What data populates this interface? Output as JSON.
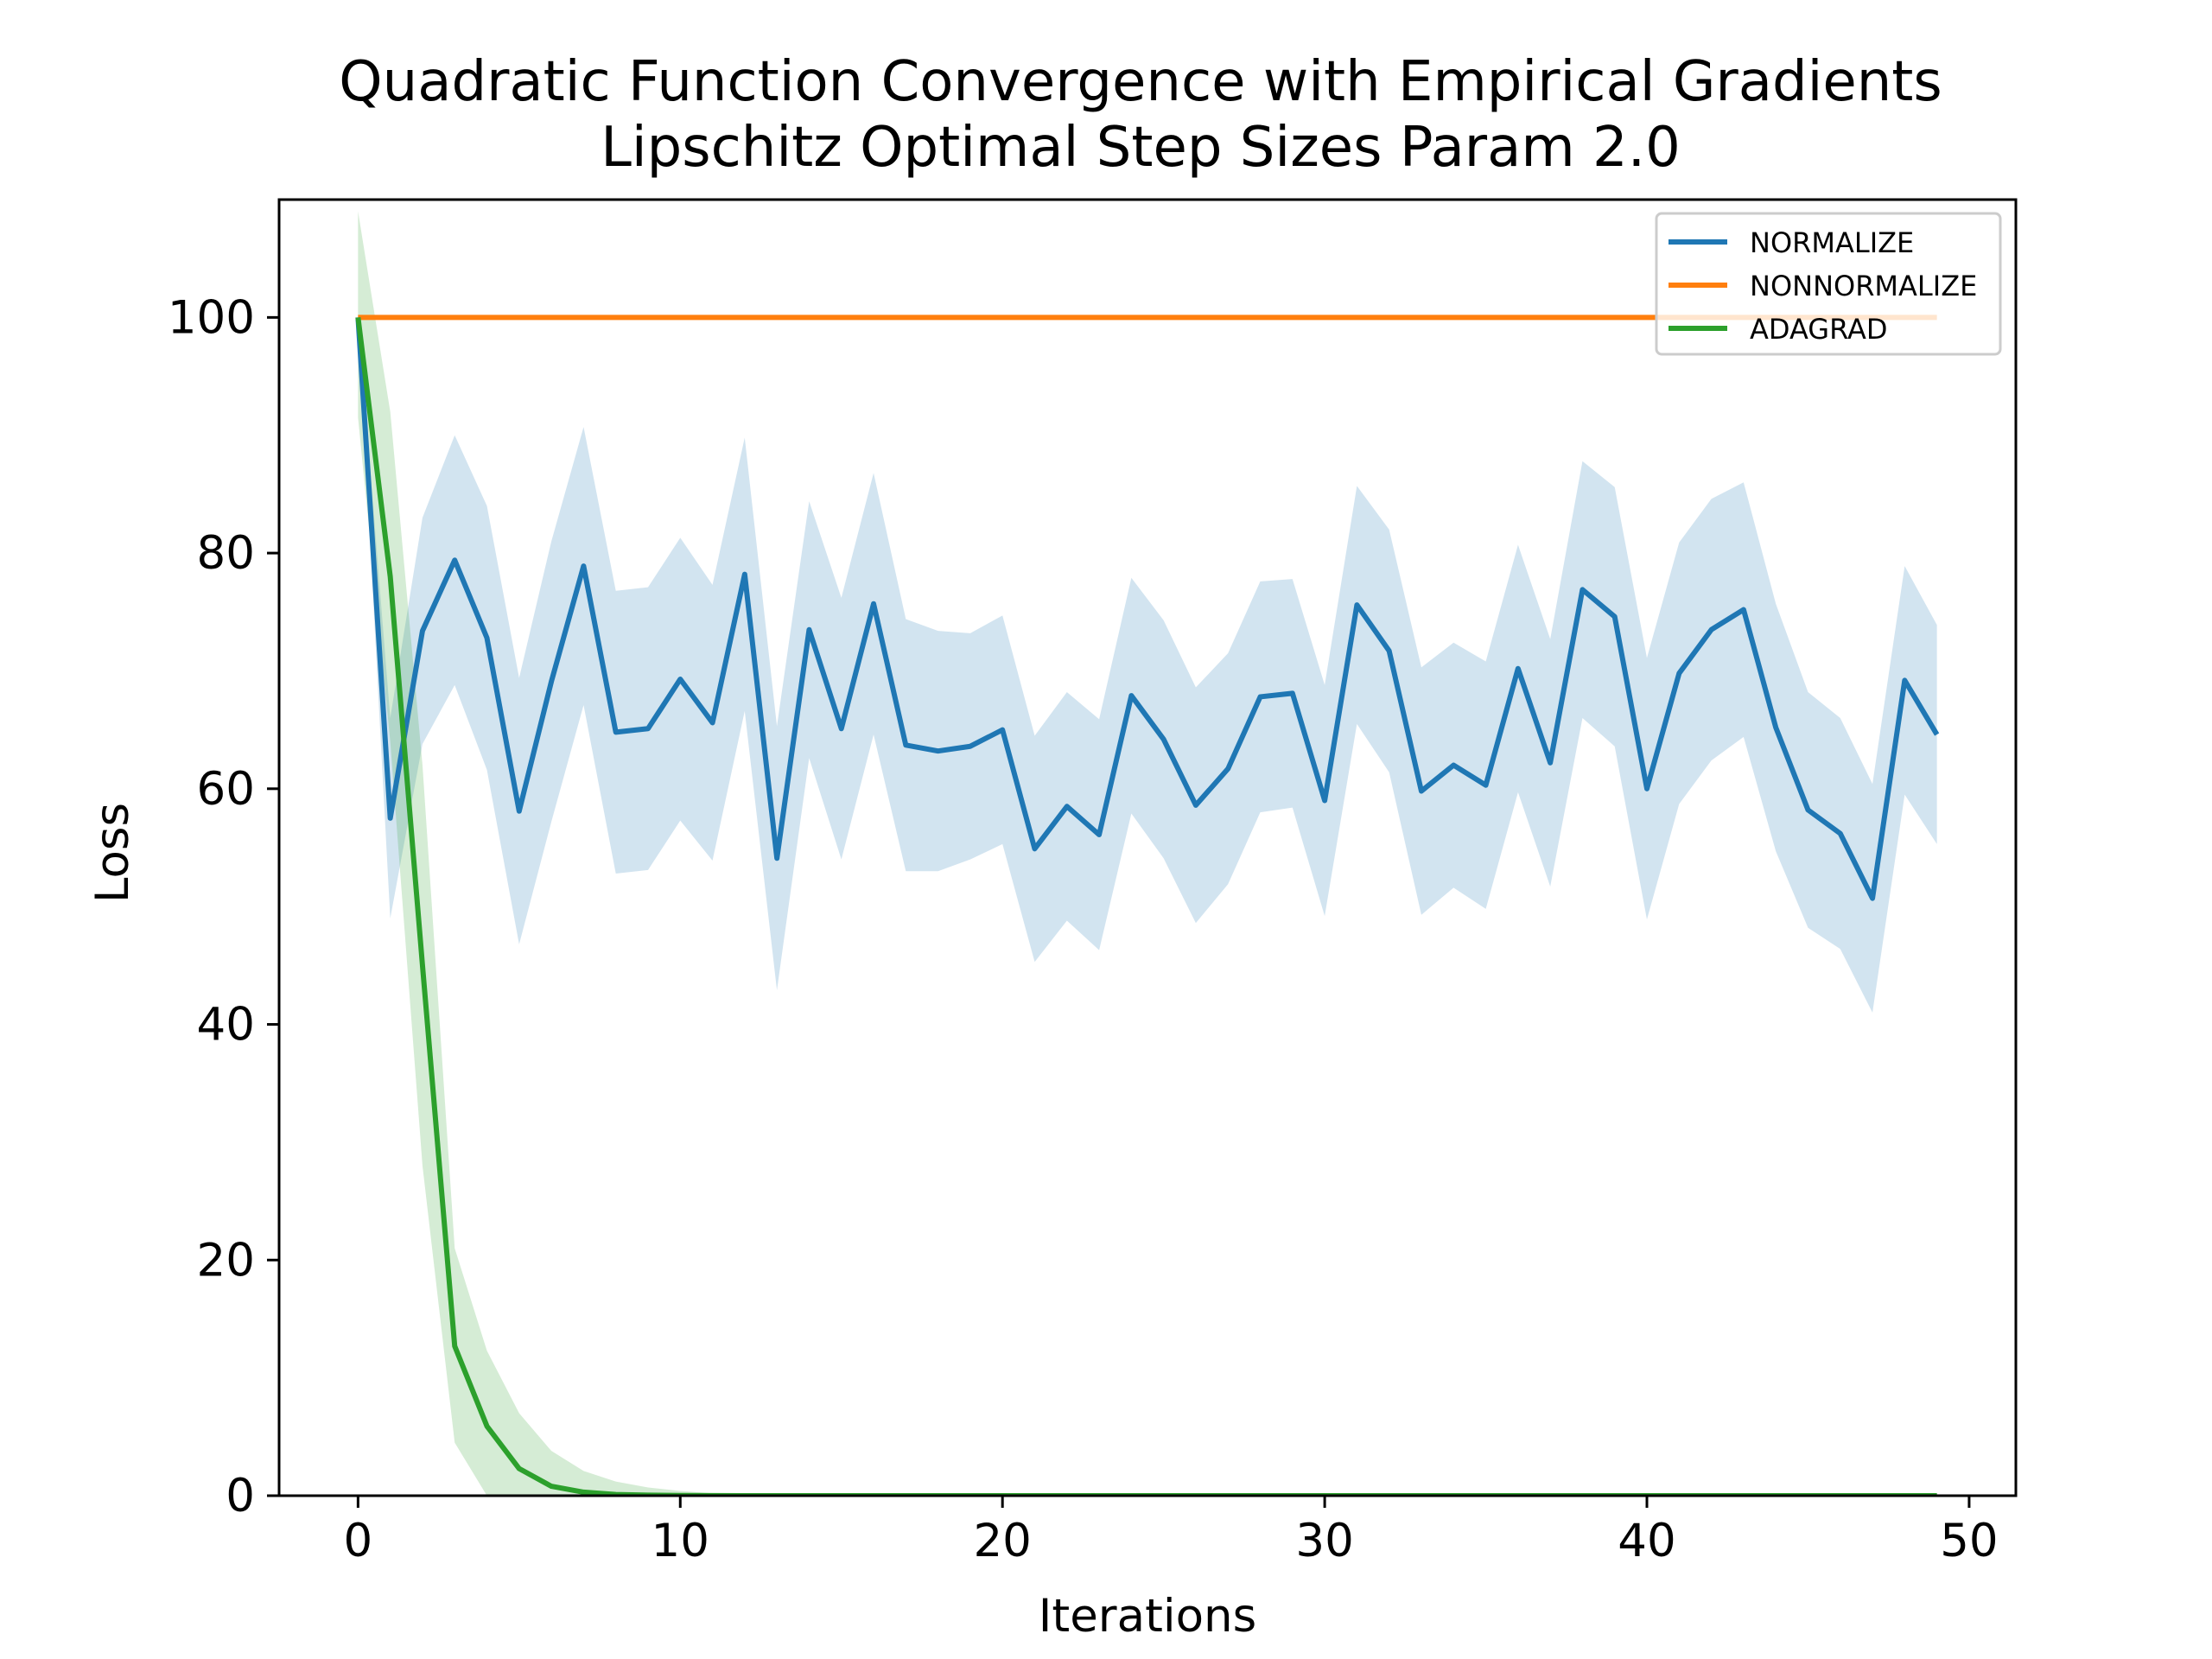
{
  "chart_data": {
    "type": "line",
    "title": "Quadratic Function Convergence with Empirical Gradients",
    "subtitle": "Lipschitz Optimal Step Sizes Param 2.0",
    "xlabel": "Iterations",
    "ylabel": "Loss",
    "xlim": [
      -2.45,
      51.45
    ],
    "ylim": [
      0,
      110
    ],
    "xticks": [
      0,
      10,
      20,
      30,
      40,
      50
    ],
    "yticks": [
      0,
      20,
      40,
      60,
      80,
      100
    ],
    "legend_position": "top-right",
    "grid": false,
    "x": [
      0,
      1,
      2,
      3,
      4,
      5,
      6,
      7,
      8,
      9,
      10,
      11,
      12,
      13,
      14,
      15,
      16,
      17,
      18,
      19,
      20,
      21,
      22,
      23,
      24,
      25,
      26,
      27,
      28,
      29,
      30,
      31,
      32,
      33,
      34,
      35,
      36,
      37,
      38,
      39,
      40,
      41,
      42,
      43,
      44,
      45,
      46,
      47,
      48,
      49
    ],
    "series": [
      {
        "name": "NORMALIZE",
        "color": "#1f77b4",
        "values": [
          100,
          57.5,
          73.4,
          79.4,
          72.8,
          58.1,
          69.1,
          78.9,
          64.8,
          65.1,
          69.3,
          65.6,
          78.2,
          54.1,
          73.5,
          65.1,
          75.7,
          63.7,
          63.2,
          63.6,
          65.0,
          54.9,
          58.5,
          56.1,
          67.9,
          64.2,
          58.6,
          61.7,
          67.8,
          68.1,
          59.0,
          75.6,
          71.7,
          59.8,
          62.0,
          60.3,
          70.2,
          62.2,
          76.9,
          74.6,
          60.0,
          69.8,
          73.5,
          75.2,
          65.2,
          58.2,
          56.2,
          50.7,
          69.2,
          64.6
        ],
        "lower": [
          100,
          49.0,
          63.8,
          68.8,
          61.6,
          46.8,
          57.2,
          67.1,
          52.8,
          53.1,
          57.3,
          53.9,
          66.6,
          42.9,
          62.6,
          54.0,
          64.6,
          53.0,
          53.0,
          54.0,
          55.3,
          45.3,
          48.8,
          46.3,
          57.9,
          54.1,
          48.6,
          51.9,
          58.0,
          58.4,
          49.2,
          65.5,
          61.4,
          49.3,
          51.6,
          49.8,
          59.7,
          51.7,
          66.0,
          63.6,
          48.9,
          58.7,
          62.4,
          64.4,
          54.7,
          48.2,
          46.4,
          41.0,
          59.5,
          55.3
        ],
        "upper": [
          100,
          66.0,
          83.0,
          90.0,
          84.0,
          69.4,
          81.0,
          90.7,
          76.8,
          77.1,
          81.3,
          77.3,
          89.8,
          65.3,
          84.4,
          76.2,
          86.8,
          74.4,
          73.4,
          73.2,
          74.7,
          64.5,
          68.2,
          65.9,
          77.9,
          74.3,
          68.6,
          71.5,
          77.6,
          77.8,
          68.8,
          85.7,
          82.0,
          70.3,
          72.4,
          70.8,
          80.7,
          72.7,
          87.8,
          85.6,
          71.1,
          80.9,
          84.6,
          86.0,
          75.7,
          68.2,
          66.0,
          60.4,
          78.9,
          73.9
        ]
      },
      {
        "name": "NONNORMALIZE",
        "color": "#ff7f0e",
        "values": [
          100,
          100,
          100,
          100,
          100,
          100,
          100,
          100,
          100,
          100,
          100,
          100,
          100,
          100,
          100,
          100,
          100,
          100,
          100,
          100,
          100,
          100,
          100,
          100,
          100,
          100,
          100,
          100,
          100,
          100,
          100,
          100,
          100,
          100,
          100,
          100,
          100,
          100,
          100,
          100,
          100,
          100,
          100,
          100,
          100,
          100,
          100,
          100,
          100,
          100
        ]
      },
      {
        "name": "ADAGRAD",
        "color": "#2ca02c",
        "values": [
          100,
          78.0,
          45.0,
          12.7,
          5.9,
          2.3,
          0.8,
          0.3,
          0.1,
          0.05,
          0.02,
          0.01,
          0,
          0,
          0,
          0,
          0,
          0,
          0,
          0,
          0,
          0,
          0,
          0,
          0,
          0,
          0,
          0,
          0,
          0,
          0,
          0,
          0,
          0,
          0,
          0,
          0,
          0,
          0,
          0,
          0,
          0,
          0,
          0,
          0,
          0,
          0,
          0,
          0,
          0
        ],
        "lower": [
          91.5,
          64.0,
          28.0,
          4.5,
          0,
          0,
          0,
          0,
          0,
          0,
          0,
          0,
          0,
          0,
          0,
          0,
          0,
          0,
          0,
          0,
          0,
          0,
          0,
          0,
          0,
          0,
          0,
          0,
          0,
          0,
          0,
          0,
          0,
          0,
          0,
          0,
          0,
          0,
          0,
          0,
          0,
          0,
          0,
          0,
          0,
          0,
          0,
          0,
          0,
          0
        ],
        "upper": [
          109,
          92.0,
          62.0,
          21.0,
          12.3,
          7.0,
          3.8,
          2.1,
          1.2,
          0.7,
          0.4,
          0.2,
          0.1,
          0.05,
          0,
          0,
          0,
          0,
          0,
          0,
          0,
          0,
          0,
          0,
          0,
          0,
          0,
          0,
          0,
          0,
          0,
          0,
          0,
          0,
          0,
          0,
          0,
          0,
          0,
          0,
          0,
          0,
          0,
          0,
          0,
          0,
          0,
          0,
          0,
          0
        ]
      }
    ]
  }
}
